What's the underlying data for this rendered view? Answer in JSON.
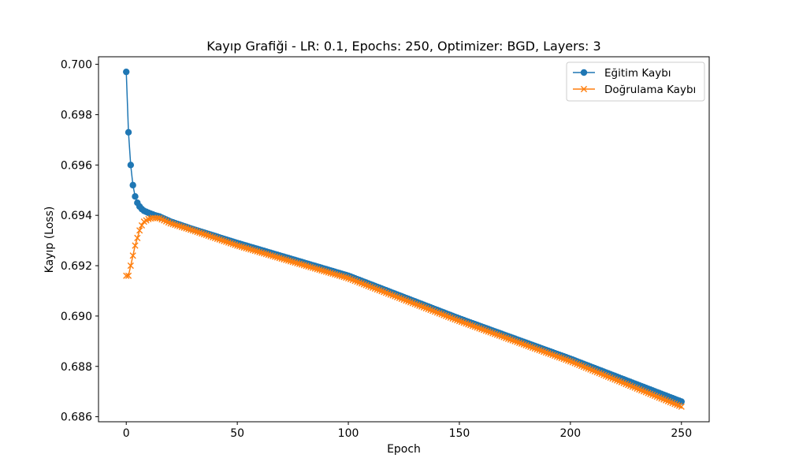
{
  "chart_data": {
    "type": "line",
    "title": "Kayıp Grafiği - LR: 0.1, Epochs: 250, Optimizer: BGD, Layers: 3",
    "xlabel": "Epoch",
    "ylabel": "Kayıp (Loss)",
    "xlim": [
      -12.5,
      262.5
    ],
    "ylim": [
      0.6858,
      0.7003
    ],
    "xticks": [
      "0",
      "50",
      "100",
      "150",
      "200",
      "250"
    ],
    "yticks": [
      "0.686",
      "0.688",
      "0.690",
      "0.692",
      "0.694",
      "0.696",
      "0.698",
      "0.700"
    ],
    "grid": false,
    "legend_position": "top-right",
    "series": [
      {
        "name": "Eğitim Kaybı",
        "color": "#1f77b4",
        "marker": "circle",
        "anchors": [
          [
            0,
            0.6997
          ],
          [
            1,
            0.6973
          ],
          [
            2,
            0.696
          ],
          [
            3,
            0.6952
          ],
          [
            4,
            0.69475
          ],
          [
            5,
            0.6945
          ],
          [
            6,
            0.69435
          ],
          [
            7,
            0.69425
          ],
          [
            8,
            0.69418
          ],
          [
            10,
            0.6941
          ],
          [
            13,
            0.694
          ],
          [
            15,
            0.69395
          ],
          [
            20,
            0.69375
          ],
          [
            30,
            0.69345
          ],
          [
            50,
            0.6929
          ],
          [
            100,
            0.6916
          ],
          [
            150,
            0.6899
          ],
          [
            200,
            0.6883
          ],
          [
            250,
            0.6866
          ]
        ]
      },
      {
        "name": "Doğrulama Kaybı",
        "color": "#ff7f0e",
        "marker": "x",
        "anchors": [
          [
            0,
            0.6916
          ],
          [
            1,
            0.6916
          ],
          [
            2,
            0.692
          ],
          [
            3,
            0.6924
          ],
          [
            4,
            0.6928
          ],
          [
            5,
            0.6931
          ],
          [
            6,
            0.6934
          ],
          [
            7,
            0.6936
          ],
          [
            8,
            0.69375
          ],
          [
            10,
            0.69385
          ],
          [
            12,
            0.6939
          ],
          [
            15,
            0.69388
          ],
          [
            20,
            0.69368
          ],
          [
            30,
            0.6934
          ],
          [
            50,
            0.6928
          ],
          [
            100,
            0.6915
          ],
          [
            150,
            0.6898
          ],
          [
            200,
            0.6882
          ],
          [
            250,
            0.6864
          ]
        ]
      }
    ]
  }
}
